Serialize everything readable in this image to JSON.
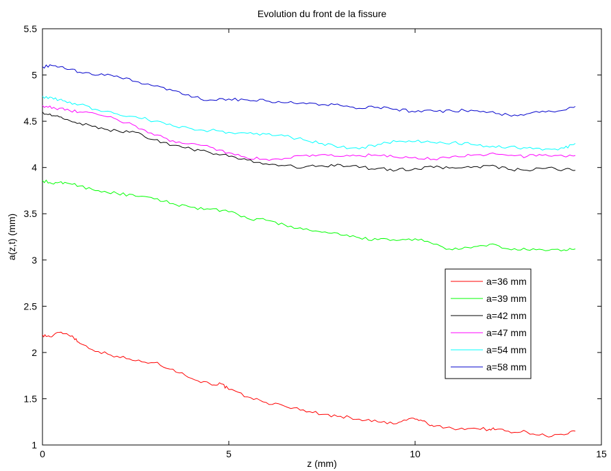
{
  "chart_data": {
    "type": "line",
    "title": "Evolution du front de la fissure",
    "xlabel": "z (mm)",
    "ylabel": "a(z,t) (mm)",
    "xlim": [
      0,
      15
    ],
    "ylim": [
      1,
      5.5
    ],
    "xticks": [
      0,
      5,
      10,
      15
    ],
    "yticks": [
      1,
      1.5,
      2,
      2.5,
      3,
      3.5,
      4,
      4.5,
      5,
      5.5
    ],
    "grid": false,
    "legend_position": "right",
    "series": [
      {
        "name": "a=36 mm",
        "color": "#ff0000",
        "x": [
          0,
          0.2,
          0.5,
          0.8,
          1.0,
          1.5,
          2.0,
          2.5,
          3.0,
          3.5,
          4.0,
          4.5,
          4.8,
          5.0,
          5.5,
          6.0,
          6.5,
          7.0,
          7.5,
          8.0,
          8.5,
          9.0,
          9.5,
          9.9,
          10.2,
          10.5,
          11.0,
          11.5,
          12.0,
          12.2,
          12.5,
          13.0,
          13.5,
          14.0,
          14.3
        ],
        "y": [
          2.19,
          2.17,
          2.22,
          2.18,
          2.1,
          2.01,
          1.96,
          1.91,
          1.89,
          1.82,
          1.72,
          1.66,
          1.66,
          1.6,
          1.52,
          1.46,
          1.42,
          1.38,
          1.33,
          1.31,
          1.28,
          1.25,
          1.23,
          1.29,
          1.26,
          1.2,
          1.18,
          1.18,
          1.17,
          1.17,
          1.15,
          1.14,
          1.1,
          1.11,
          1.15
        ]
      },
      {
        "name": "a=39 mm",
        "color": "#00ff00",
        "x": [
          0,
          0.3,
          0.6,
          1.0,
          1.5,
          2.0,
          2.5,
          3.0,
          3.5,
          4.0,
          4.5,
          5.0,
          5.5,
          6.0,
          6.5,
          7.0,
          7.5,
          8.0,
          8.5,
          9.0,
          9.5,
          10.0,
          10.5,
          11.0,
          11.5,
          12.0,
          12.5,
          13.0,
          13.5,
          14.0,
          14.3
        ],
        "y": [
          3.86,
          3.82,
          3.84,
          3.8,
          3.75,
          3.72,
          3.69,
          3.66,
          3.61,
          3.57,
          3.55,
          3.52,
          3.45,
          3.43,
          3.38,
          3.33,
          3.3,
          3.27,
          3.24,
          3.22,
          3.21,
          3.23,
          3.17,
          3.11,
          3.13,
          3.17,
          3.12,
          3.11,
          3.1,
          3.11,
          3.12
        ]
      },
      {
        "name": "a=42 mm",
        "color": "#000000",
        "x": [
          0,
          0.3,
          0.6,
          1.0,
          1.5,
          2.0,
          2.5,
          3.0,
          3.5,
          4.0,
          4.5,
          5.0,
          5.5,
          6.0,
          6.5,
          7.0,
          7.5,
          8.0,
          8.5,
          9.0,
          9.5,
          10.0,
          10.5,
          11.0,
          11.5,
          12.0,
          12.5,
          13.0,
          13.5,
          14.0,
          14.3
        ],
        "y": [
          4.6,
          4.56,
          4.52,
          4.48,
          4.42,
          4.4,
          4.38,
          4.3,
          4.24,
          4.2,
          4.16,
          4.12,
          4.08,
          4.04,
          4.02,
          4.0,
          4.02,
          4.03,
          4.0,
          3.99,
          3.97,
          3.99,
          4.0,
          4.0,
          4.0,
          4.02,
          3.98,
          3.97,
          3.99,
          3.98,
          3.97
        ]
      },
      {
        "name": "a=47 mm",
        "color": "#ff00ff",
        "x": [
          0,
          0.3,
          0.6,
          1.0,
          1.5,
          2.0,
          2.5,
          3.0,
          3.5,
          4.0,
          4.5,
          5.0,
          5.5,
          6.0,
          6.5,
          7.0,
          7.5,
          8.0,
          8.5,
          9.0,
          9.5,
          10.0,
          10.5,
          11.0,
          11.5,
          12.0,
          12.5,
          13.0,
          13.5,
          14.0,
          14.3
        ],
        "y": [
          4.67,
          4.65,
          4.62,
          4.6,
          4.57,
          4.52,
          4.45,
          4.35,
          4.29,
          4.26,
          4.22,
          4.16,
          4.1,
          4.09,
          4.1,
          4.13,
          4.14,
          4.12,
          4.13,
          4.13,
          4.11,
          4.11,
          4.09,
          4.12,
          4.13,
          4.15,
          4.13,
          4.12,
          4.14,
          4.12,
          4.13
        ]
      },
      {
        "name": "a=54 mm",
        "color": "#00ffff",
        "x": [
          0,
          0.3,
          0.6,
          1.0,
          1.5,
          2.0,
          2.5,
          3.0,
          3.5,
          4.0,
          4.5,
          5.0,
          5.5,
          6.0,
          6.5,
          7.0,
          7.5,
          8.0,
          8.5,
          9.0,
          9.5,
          10.0,
          10.5,
          11.0,
          11.5,
          12.0,
          12.5,
          13.0,
          13.5,
          14.0,
          14.3
        ],
        "y": [
          4.77,
          4.74,
          4.72,
          4.68,
          4.62,
          4.58,
          4.55,
          4.5,
          4.45,
          4.42,
          4.4,
          4.38,
          4.37,
          4.36,
          4.34,
          4.3,
          4.26,
          4.22,
          4.2,
          4.25,
          4.28,
          4.28,
          4.27,
          4.27,
          4.25,
          4.22,
          4.22,
          4.21,
          4.2,
          4.21,
          4.26
        ]
      },
      {
        "name": "a=58 mm",
        "color": "#0000cc",
        "x": [
          0,
          0.3,
          0.6,
          1.0,
          1.5,
          2.0,
          2.5,
          3.0,
          3.5,
          4.0,
          4.5,
          5.0,
          5.5,
          6.0,
          6.5,
          7.0,
          7.5,
          8.0,
          8.5,
          9.0,
          9.5,
          10.0,
          10.5,
          11.0,
          11.5,
          12.0,
          12.5,
          13.0,
          13.5,
          14.0,
          14.3
        ],
        "y": [
          5.09,
          5.1,
          5.07,
          5.03,
          5.0,
          4.99,
          4.93,
          4.88,
          4.83,
          4.76,
          4.73,
          4.74,
          4.73,
          4.72,
          4.7,
          4.7,
          4.68,
          4.67,
          4.64,
          4.65,
          4.63,
          4.6,
          4.61,
          4.61,
          4.62,
          4.6,
          4.57,
          4.58,
          4.6,
          4.62,
          4.66
        ]
      }
    ]
  }
}
